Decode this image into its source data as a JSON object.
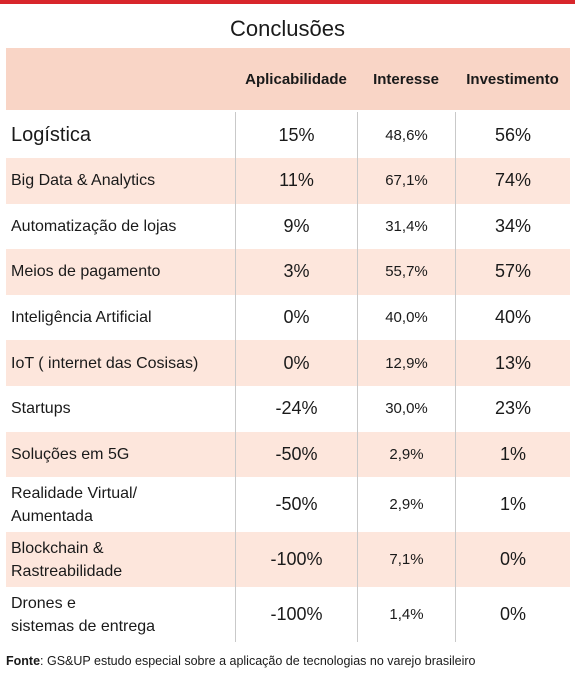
{
  "title": "Conclusões",
  "table": {
    "headers": [
      "Aplicabilidade",
      "Interesse",
      "Investimento"
    ],
    "rows": [
      [
        "Logística",
        "15%",
        "48,6%",
        "56%"
      ],
      [
        "Big Data & Analytics",
        "11%",
        "67,1%",
        "74%"
      ],
      [
        "Automatização de lojas",
        "9%",
        "31,4%",
        "34%"
      ],
      [
        "Meios de pagamento",
        "3%",
        "55,7%",
        "57%"
      ],
      [
        "Inteligência Artificial",
        "0%",
        "40,0%",
        "40%"
      ],
      [
        "IoT ( internet das Cosisas)",
        "0%",
        "12,9%",
        "13%"
      ],
      [
        "Startups",
        "-24%",
        "30,0%",
        "23%"
      ],
      [
        "Soluções em 5G",
        "-50%",
        "2,9%",
        "1%"
      ],
      [
        "Realidade Virtual/\nAumentada",
        "-50%",
        "2,9%",
        "1%"
      ],
      [
        "Blockchain &\nRastreabilidade",
        "-100%",
        "7,1%",
        "0%"
      ],
      [
        "Drones e\nsistemas de entrega",
        "-100%",
        "1,4%",
        "0%"
      ]
    ]
  },
  "footer": {
    "label": "Fonte",
    "text": ": GS&UP estudo especial sobre a aplicação de tecnologias no varejo brasileiro"
  }
}
